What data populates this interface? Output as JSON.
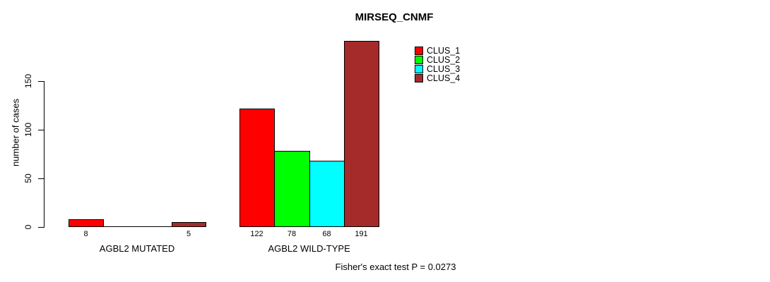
{
  "chart_data": {
    "type": "bar",
    "title": "MIRSEQ_CNMF",
    "ylabel": "number of cases",
    "xlabel": "",
    "ylim": [
      0,
      195
    ],
    "yticks": [
      0,
      50,
      100,
      150
    ],
    "grid": false,
    "legend_position": "top-right",
    "categories": [
      "AGBL2 MUTATED",
      "AGBL2 WILD-TYPE"
    ],
    "series": [
      {
        "name": "CLUS_1",
        "color": "#FF0000",
        "values": [
          8,
          122
        ]
      },
      {
        "name": "CLUS_2",
        "color": "#00FF00",
        "values": [
          0,
          78
        ]
      },
      {
        "name": "CLUS_3",
        "color": "#00FFFF",
        "values": [
          0,
          68
        ]
      },
      {
        "name": "CLUS_4",
        "color": "#A52A2A",
        "values": [
          5,
          191
        ]
      }
    ],
    "bar_value_labels": [
      [
        "8",
        "",
        "",
        "5"
      ],
      [
        "122",
        "78",
        "68",
        "191"
      ]
    ],
    "annotation": "Fisher's exact test P = 0.0273",
    "colors": {
      "bar_border": "#000000",
      "axis": "#000000",
      "background": "#FFFFFF"
    }
  }
}
